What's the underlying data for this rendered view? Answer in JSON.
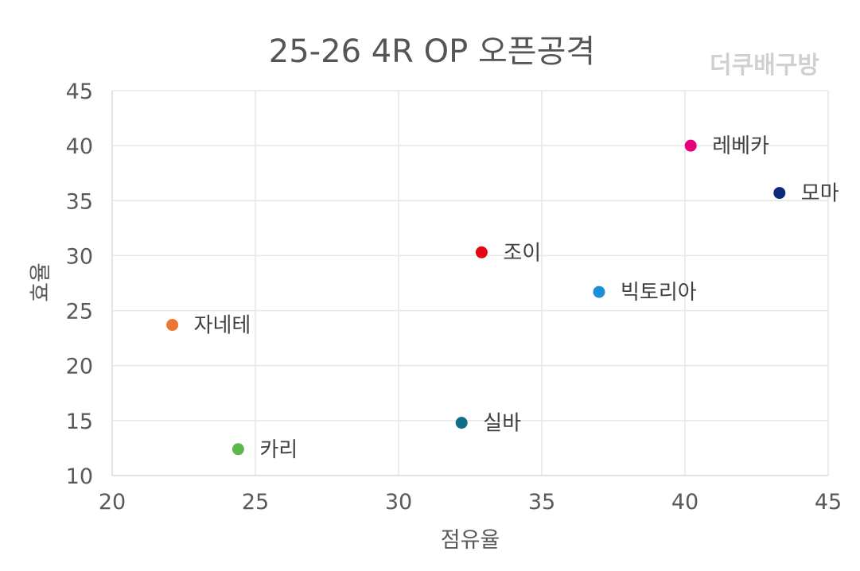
{
  "chart_data": {
    "type": "scatter",
    "title": "25-26 4R OP 오픈공격",
    "watermark": "더쿠배구방",
    "xlabel": "점유율",
    "ylabel": "효율",
    "xlim": [
      20,
      45
    ],
    "ylim": [
      10,
      45
    ],
    "xticks": [
      20,
      25,
      30,
      35,
      40,
      45
    ],
    "yticks": [
      10,
      15,
      20,
      25,
      30,
      35,
      40,
      45
    ],
    "grid": true,
    "points": [
      {
        "label": "레베카",
        "x": 40.2,
        "y": 40.0,
        "color": "#e6007e"
      },
      {
        "label": "모마",
        "x": 43.3,
        "y": 35.7,
        "color": "#0b2a7a"
      },
      {
        "label": "조이",
        "x": 32.9,
        "y": 30.3,
        "color": "#e30613"
      },
      {
        "label": "빅토리아",
        "x": 37.0,
        "y": 26.7,
        "color": "#1a8fd6"
      },
      {
        "label": "자네테",
        "x": 22.1,
        "y": 23.7,
        "color": "#ed7633"
      },
      {
        "label": "실바",
        "x": 32.2,
        "y": 14.8,
        "color": "#0e6e8c"
      },
      {
        "label": "카리",
        "x": 24.4,
        "y": 12.4,
        "color": "#5cb84a"
      }
    ]
  }
}
